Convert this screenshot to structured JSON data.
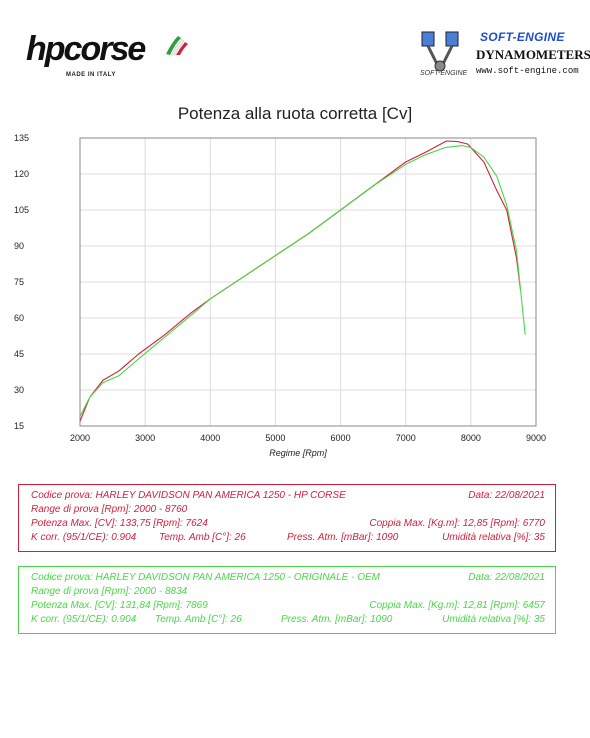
{
  "logos": {
    "hpcorse": {
      "brand": "hpcorse",
      "tagline": "MADE IN ITALY"
    },
    "softengine": {
      "title": "SOFT-ENGINE",
      "subtitle": "DYNAMOMETERS",
      "url": "www.soft-engine.com",
      "mini": "SOFT-ENGINE"
    }
  },
  "colors": {
    "hp_corse": "#d21f3c",
    "oem": "#4bd648",
    "grid": "#dcdcdc",
    "axis": "#555555"
  },
  "chart_data": {
    "type": "line",
    "title": "Potenza alla ruota corretta [Cv]",
    "xlabel": "Regime [Rpm]",
    "ylabel": "",
    "xlim": [
      2000,
      9000
    ],
    "ylim": [
      15,
      135
    ],
    "xticks": [
      2000,
      3000,
      4000,
      5000,
      6000,
      7000,
      8000,
      9000
    ],
    "yticks": [
      15,
      30,
      45,
      60,
      75,
      90,
      105,
      120,
      135
    ],
    "grid": true,
    "series": [
      {
        "name": "HARLEY DAVIDSON PAN AMERICA 1250 - HP CORSE",
        "color": "#d21f3c",
        "x": [
          2000,
          2150,
          2350,
          2600,
          2900,
          3300,
          3700,
          4000,
          4500,
          5000,
          5500,
          6000,
          6500,
          7000,
          7300,
          7624,
          7800,
          7950,
          8200,
          8400,
          8550,
          8700,
          8760
        ],
        "y": [
          17,
          27,
          34,
          38,
          45,
          53,
          62,
          68,
          77,
          86,
          95,
          105,
          115,
          125,
          129,
          133.75,
          133.5,
          132.5,
          125,
          113,
          105,
          85,
          72
        ]
      },
      {
        "name": "HARLEY DAVIDSON PAN AMERICA 1250 - ORIGINALE - OEM",
        "color": "#4bd648",
        "x": [
          2000,
          2150,
          2350,
          2600,
          2900,
          3300,
          3700,
          4000,
          4500,
          5000,
          5500,
          6000,
          6500,
          7000,
          7300,
          7600,
          7869,
          8000,
          8200,
          8400,
          8550,
          8700,
          8834
        ],
        "y": [
          19,
          27,
          33,
          36,
          43,
          52,
          61,
          68,
          77,
          86,
          95,
          105,
          115,
          124,
          128,
          131,
          131.84,
          131,
          127,
          119,
          107,
          88,
          53
        ]
      }
    ]
  },
  "box_hp": {
    "code": "Codice prova: HARLEY DAVIDSON  PAN AMERICA 1250 - HP CORSE",
    "date": "Data: 22/08/2021",
    "range": "Range di prova [Rpm]: 2000 - 8760",
    "power": "Potenza Max. [CV]:  133,75 [Rpm]: 7624",
    "torque": "Coppia Max. [Kg.m]:  12,85 [Rpm]: 6770",
    "kcorr": "K corr. (95/1/CE): 0.904",
    "temp": "Temp. Amb [C°]: 26",
    "press": "Press. Atm. [mBar]: 1090",
    "humidity": "Umidità relativa [%]: 35"
  },
  "box_oem": {
    "code": "Codice prova: HARLEY DAVIDSON  PAN AMERICA 1250 - ORIGINALE - OEM",
    "date": "Data: 22/08/2021",
    "range": "Range di prova [Rpm]: 2000 - 8834",
    "power": "Potenza Max. [CV]:  131,84 [Rpm]: 7869",
    "torque": "Coppia Max.  [Kg.m]:  12,81 [Rpm]: 6457",
    "kcorr": "K corr. (95/1/CE): 0.904",
    "temp": "Temp. Amb [C°]: 26",
    "press": "Press. Atm. [mBar]: 1090",
    "humidity": "Umidità relativa [%]: 35"
  }
}
